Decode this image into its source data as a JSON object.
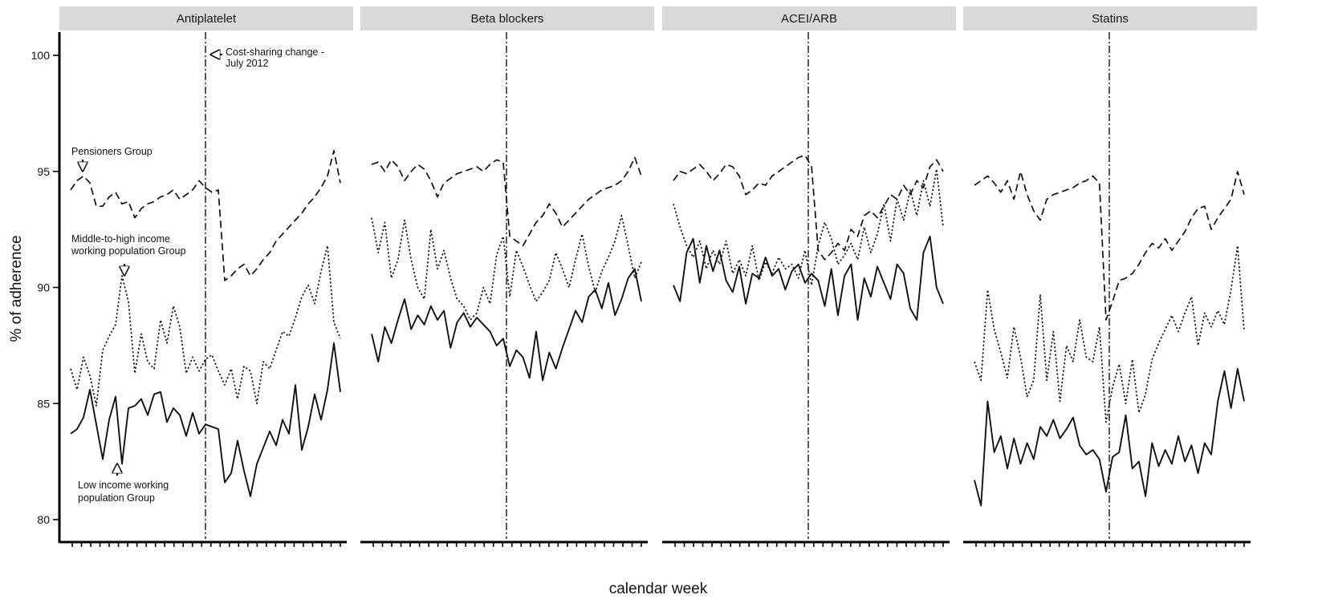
{
  "chart_data": {
    "type": "line",
    "xlabel": "calendar week",
    "ylabel": "% of adherence",
    "ylim": [
      80,
      100
    ],
    "yticks": [
      80,
      85,
      90,
      95,
      100
    ],
    "grid": false,
    "series_styles": {
      "pensioners": "dashed",
      "middle_high": "dotted",
      "low_income": "solid"
    },
    "annotations": {
      "cost_sharing": [
        "Cost-sharing change -",
        "July 2012"
      ],
      "pensioners": [
        "Pensioners Group"
      ],
      "middle_high": [
        "Middle-to-high income",
        "working population Group"
      ],
      "low_income": [
        "Low income working",
        "population Group"
      ]
    },
    "intervention_fraction": 0.5,
    "panels": [
      {
        "title": "Antiplatelet",
        "series": {
          "pensioners": [
            94.2,
            94.6,
            94.8,
            94.5,
            93.5,
            93.5,
            93.9,
            94.1,
            93.6,
            93.7,
            93.0,
            93.4,
            93.6,
            93.7,
            93.9,
            94.0,
            94.2,
            93.8,
            94.0,
            94.2,
            94.6,
            94.3,
            94.1,
            94.2,
            90.3,
            90.5,
            90.8,
            91.0,
            90.5,
            90.8,
            91.2,
            91.5,
            92.0,
            92.3,
            92.6,
            92.9,
            93.2,
            93.6,
            93.9,
            94.3,
            94.8,
            95.9,
            94.5
          ],
          "middle_high": [
            86.5,
            85.6,
            87.0,
            86.2,
            84.9,
            87.3,
            87.9,
            88.4,
            90.5,
            89.4,
            86.3,
            88.0,
            86.8,
            86.5,
            88.6,
            87.6,
            89.2,
            88.3,
            86.3,
            87.0,
            86.4,
            86.9,
            87.1,
            86.4,
            85.8,
            86.5,
            85.2,
            86.6,
            86.4,
            85.0,
            86.8,
            86.5,
            87.3,
            88.1,
            87.9,
            88.7,
            89.6,
            90.1,
            89.3,
            90.7,
            91.8,
            88.5,
            87.8
          ],
          "low_income": [
            83.7,
            83.9,
            84.4,
            85.6,
            84.1,
            82.6,
            84.3,
            85.3,
            82.4,
            84.8,
            84.9,
            85.2,
            84.5,
            85.4,
            85.5,
            84.2,
            84.8,
            84.5,
            83.6,
            84.6,
            83.7,
            84.1,
            84.0,
            83.9,
            81.6,
            82.0,
            83.4,
            82.1,
            81.0,
            82.4,
            83.1,
            83.8,
            83.2,
            84.3,
            83.7,
            85.8,
            83.0,
            84.0,
            85.4,
            84.3,
            85.6,
            87.6,
            85.5
          ]
        }
      },
      {
        "title": "Beta blockers",
        "series": {
          "pensioners": [
            95.3,
            95.4,
            95.0,
            95.5,
            95.2,
            94.6,
            95.0,
            95.3,
            95.1,
            94.6,
            93.9,
            94.5,
            94.7,
            94.9,
            95.0,
            95.1,
            95.2,
            95.0,
            95.3,
            95.5,
            95.4,
            92.2,
            92.0,
            91.8,
            92.3,
            92.8,
            93.1,
            93.6,
            93.2,
            92.6,
            92.9,
            93.2,
            93.5,
            93.8,
            94.0,
            94.2,
            94.3,
            94.4,
            94.6,
            95.0,
            95.6,
            94.8
          ],
          "middle_high": [
            93.0,
            91.5,
            92.8,
            90.4,
            91.2,
            92.9,
            91.2,
            90.0,
            89.5,
            92.5,
            90.8,
            91.6,
            90.4,
            89.5,
            89.2,
            88.6,
            88.9,
            90.0,
            89.3,
            91.4,
            92.2,
            89.6,
            91.6,
            90.9,
            90.1,
            89.4,
            89.8,
            90.3,
            91.5,
            90.8,
            90.0,
            91.2,
            92.3,
            90.9,
            89.8,
            90.7,
            91.3,
            92.0,
            93.1,
            91.8,
            90.4,
            91.1
          ],
          "low_income": [
            88.0,
            86.8,
            88.3,
            87.6,
            88.6,
            89.5,
            88.2,
            88.8,
            88.4,
            89.2,
            88.6,
            89.0,
            87.4,
            88.5,
            88.9,
            88.3,
            88.7,
            88.4,
            88.1,
            87.5,
            87.8,
            86.6,
            87.3,
            87.0,
            86.1,
            88.1,
            86.0,
            87.2,
            86.5,
            87.4,
            88.2,
            89.0,
            88.5,
            89.6,
            89.9,
            89.1,
            90.2,
            88.8,
            89.5,
            90.4,
            90.8,
            89.4
          ]
        }
      },
      {
        "title": "ACEI/ARB",
        "series": {
          "pensioners": [
            94.6,
            95.0,
            94.9,
            95.1,
            95.3,
            95.0,
            94.6,
            94.9,
            95.3,
            95.2,
            94.8,
            94.0,
            94.2,
            94.5,
            94.4,
            94.8,
            95.0,
            95.2,
            95.4,
            95.6,
            95.7,
            95.2,
            91.6,
            91.2,
            91.5,
            91.9,
            91.6,
            92.5,
            92.2,
            93.1,
            93.3,
            93.0,
            93.5,
            94.0,
            93.8,
            94.4,
            94.0,
            94.6,
            94.3,
            95.2,
            95.5,
            95.0
          ],
          "middle_high": [
            93.6,
            92.6,
            91.8,
            91.3,
            92.0,
            90.8,
            91.6,
            91.0,
            92.0,
            90.6,
            91.2,
            90.5,
            91.8,
            90.3,
            91.1,
            90.6,
            91.3,
            90.8,
            91.0,
            90.4,
            91.6,
            90.1,
            91.8,
            92.8,
            92.1,
            91.0,
            91.4,
            91.9,
            91.2,
            92.6,
            91.5,
            92.3,
            93.6,
            92.0,
            93.8,
            92.9,
            94.2,
            93.1,
            94.6,
            93.5,
            95.1,
            92.6
          ],
          "low_income": [
            90.1,
            89.4,
            91.5,
            92.1,
            90.2,
            91.8,
            90.7,
            91.6,
            90.3,
            89.8,
            90.9,
            89.3,
            90.6,
            90.4,
            91.3,
            90.5,
            90.8,
            89.9,
            90.7,
            91.0,
            90.2,
            90.6,
            90.3,
            89.2,
            90.8,
            88.8,
            90.5,
            91.0,
            88.6,
            90.4,
            89.6,
            90.9,
            90.2,
            89.5,
            91.0,
            90.6,
            89.1,
            88.6,
            91.5,
            92.2,
            90.0,
            89.3
          ]
        }
      },
      {
        "title": "Statins",
        "series": {
          "pensioners": [
            94.4,
            94.6,
            94.8,
            94.5,
            94.1,
            94.6,
            93.8,
            95.0,
            94.0,
            93.3,
            92.9,
            93.8,
            94.0,
            94.1,
            94.2,
            94.3,
            94.5,
            94.6,
            94.8,
            94.5,
            88.6,
            89.4,
            90.3,
            90.4,
            90.6,
            91.0,
            91.5,
            91.9,
            91.7,
            92.1,
            91.6,
            92.0,
            92.4,
            93.0,
            93.4,
            93.5,
            92.5,
            93.0,
            93.4,
            93.8,
            95.0,
            94.0
          ],
          "middle_high": [
            86.8,
            86.0,
            89.9,
            88.2,
            87.2,
            86.1,
            88.3,
            87.0,
            85.3,
            86.0,
            89.7,
            86.0,
            88.1,
            85.1,
            87.5,
            86.8,
            88.6,
            87.0,
            86.8,
            88.3,
            84.2,
            85.7,
            86.7,
            85.0,
            86.9,
            84.6,
            85.4,
            86.9,
            87.6,
            88.2,
            88.8,
            88.1,
            88.9,
            89.6,
            87.5,
            88.9,
            88.3,
            89.0,
            88.4,
            89.9,
            91.8,
            88.1
          ],
          "low_income": [
            81.7,
            80.6,
            85.1,
            82.9,
            83.6,
            82.2,
            83.5,
            82.4,
            83.3,
            82.6,
            84.0,
            83.6,
            84.3,
            83.5,
            83.9,
            84.4,
            83.2,
            82.8,
            83.0,
            82.6,
            81.2,
            82.7,
            82.9,
            84.5,
            82.2,
            82.5,
            81.0,
            83.3,
            82.3,
            83.0,
            82.4,
            83.6,
            82.5,
            83.2,
            82.0,
            83.3,
            82.8,
            85.1,
            86.4,
            84.8,
            86.5,
            85.1
          ]
        }
      }
    ]
  }
}
